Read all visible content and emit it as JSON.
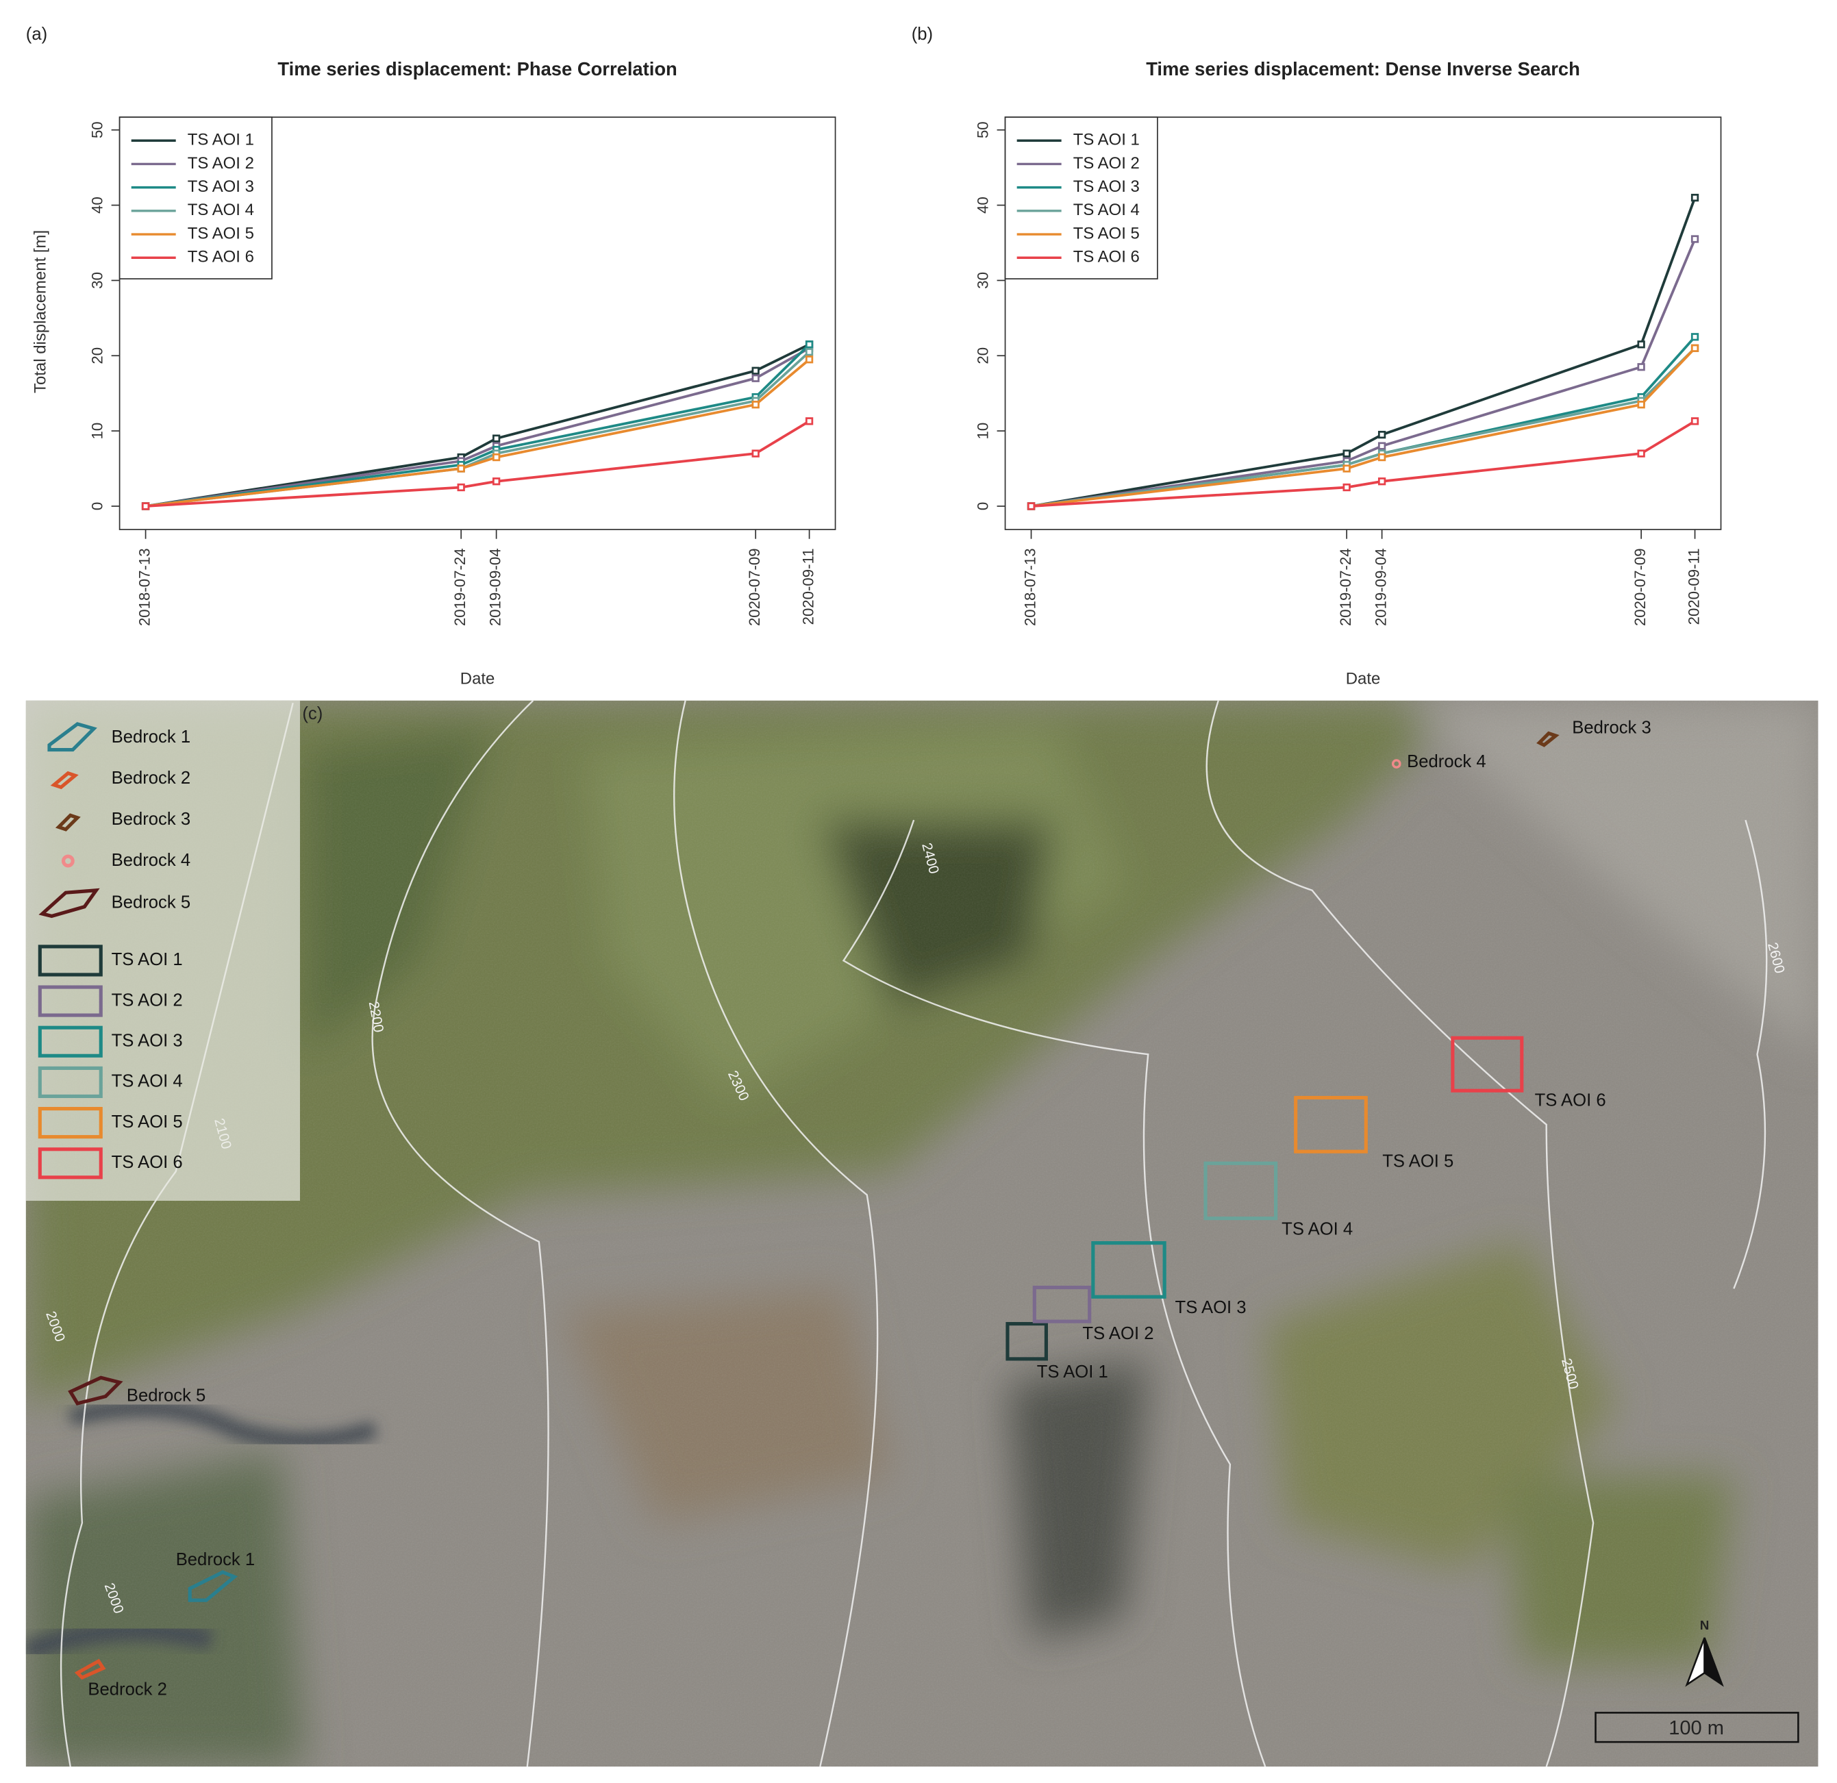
{
  "chart_data": [
    {
      "type": "line",
      "panel_label": "(a)",
      "title": "Time series displacement: Phase Correlation",
      "ylabel": "Total displacement [m]",
      "xlabel": "Date",
      "x": [
        "2018-07-13",
        "2019-07-24",
        "2019-09-04",
        "2020-07-09",
        "2020-09-11"
      ],
      "xticks": [
        "2018-07-13",
        "2019-07-24",
        "2019-09-04",
        "2020-07-09",
        "2020-09-11"
      ],
      "xlim": [
        "2018-06-12",
        "2020-10-12"
      ],
      "ylim": [
        -3.1,
        51.7
      ],
      "yticks": [
        0,
        10,
        20,
        30,
        40,
        50
      ],
      "legend": "top-left",
      "series": [
        {
          "name": "TS AOI 1",
          "color": "#1f3b3a",
          "values": [
            0,
            6.5,
            9,
            18,
            21.5
          ]
        },
        {
          "name": "TS AOI 2",
          "color": "#7b6a8e",
          "values": [
            0,
            6,
            8,
            17,
            21
          ]
        },
        {
          "name": "TS AOI 3",
          "color": "#1e8a86",
          "values": [
            0,
            5.5,
            7.5,
            14.5,
            21.5
          ]
        },
        {
          "name": "TS AOI 4",
          "color": "#6aa39a",
          "values": [
            0,
            5,
            7,
            14,
            20.5
          ]
        },
        {
          "name": "TS AOI 5",
          "color": "#e88a2e",
          "values": [
            0,
            5,
            6.5,
            13.5,
            19.5
          ]
        },
        {
          "name": "TS AOI 6",
          "color": "#e8414a",
          "values": [
            0,
            2.5,
            3.3,
            7,
            11.3
          ]
        }
      ]
    },
    {
      "type": "line",
      "panel_label": "(b)",
      "title": "Time series displacement: Dense Inverse Search",
      "xlabel": "Date",
      "x": [
        "2018-07-13",
        "2019-07-24",
        "2019-09-04",
        "2020-07-09",
        "2020-09-11"
      ],
      "xticks": [
        "2018-07-13",
        "2019-07-24",
        "2019-09-04",
        "2020-07-09",
        "2020-09-11"
      ],
      "xlim": [
        "2018-06-12",
        "2020-10-12"
      ],
      "ylim": [
        -3.1,
        51.7
      ],
      "yticks": [
        0,
        10,
        20,
        30,
        40,
        50
      ],
      "legend": "top-left",
      "series": [
        {
          "name": "TS AOI 1",
          "color": "#1f3b3a",
          "values": [
            0,
            7,
            9.5,
            21.5,
            41
          ]
        },
        {
          "name": "TS AOI 2",
          "color": "#7b6a8e",
          "values": [
            0,
            6,
            8,
            18.5,
            35.5
          ]
        },
        {
          "name": "TS AOI 3",
          "color": "#1e8a86",
          "values": [
            0,
            5.5,
            7,
            14.5,
            22.5
          ]
        },
        {
          "name": "TS AOI 4",
          "color": "#6aa39a",
          "values": [
            0,
            5.5,
            7,
            14,
            21
          ]
        },
        {
          "name": "TS AOI 5",
          "color": "#e88a2e",
          "values": [
            0,
            5,
            6.5,
            13.5,
            21
          ]
        },
        {
          "name": "TS AOI 6",
          "color": "#e8414a",
          "values": [
            0,
            2.5,
            3.3,
            7,
            11.3
          ]
        }
      ]
    }
  ],
  "map": {
    "panel_label": "(c)",
    "items": [
      {
        "label": "Bedrock 1",
        "color": "#2a7f8e"
      },
      {
        "label": "Bedrock 2",
        "color": "#d9552a"
      },
      {
        "label": "Bedrock 3",
        "color": "#6b3a1a"
      },
      {
        "label": "Bedrock 4",
        "color": "#f08a8a"
      },
      {
        "label": "Bedrock 5",
        "color": "#5a1a1a"
      },
      {
        "label": "TS AOI 1",
        "color": "#1f3b3a"
      },
      {
        "label": "TS AOI 2",
        "color": "#7b6a8e"
      },
      {
        "label": "TS AOI 3",
        "color": "#1e8a86"
      },
      {
        "label": "TS AOI 4",
        "color": "#6aa39a"
      },
      {
        "label": "TS AOI 5",
        "color": "#e88a2e"
      },
      {
        "label": "TS AOI 6",
        "color": "#e8414a"
      }
    ],
    "contours": [
      "2400",
      "2200",
      "2300",
      "2100",
      "2000",
      "2000",
      "2500",
      "2600"
    ],
    "north": "N",
    "scale": "100 m"
  }
}
